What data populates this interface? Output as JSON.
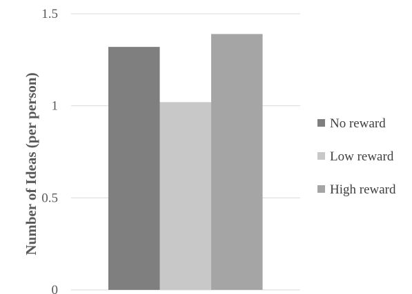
{
  "chart_data": {
    "type": "bar",
    "categories": [
      ""
    ],
    "series": [
      {
        "name": "No reward",
        "values": [
          1.32
        ],
        "color": "#7f7f7f"
      },
      {
        "name": "Low reward",
        "values": [
          1.02
        ],
        "color": "#c8c8c8"
      },
      {
        "name": "High reward",
        "values": [
          1.39
        ],
        "color": "#a5a5a5"
      }
    ],
    "ylabel": "Number of Ideas (per person)",
    "xlabel": "",
    "ylim": [
      0,
      1.5
    ],
    "yticks": [
      0,
      0.5,
      1,
      1.5
    ],
    "ytick_labels": [
      "0",
      "0.5",
      "1",
      "1.5"
    ],
    "grid": true,
    "legend": "right"
  }
}
